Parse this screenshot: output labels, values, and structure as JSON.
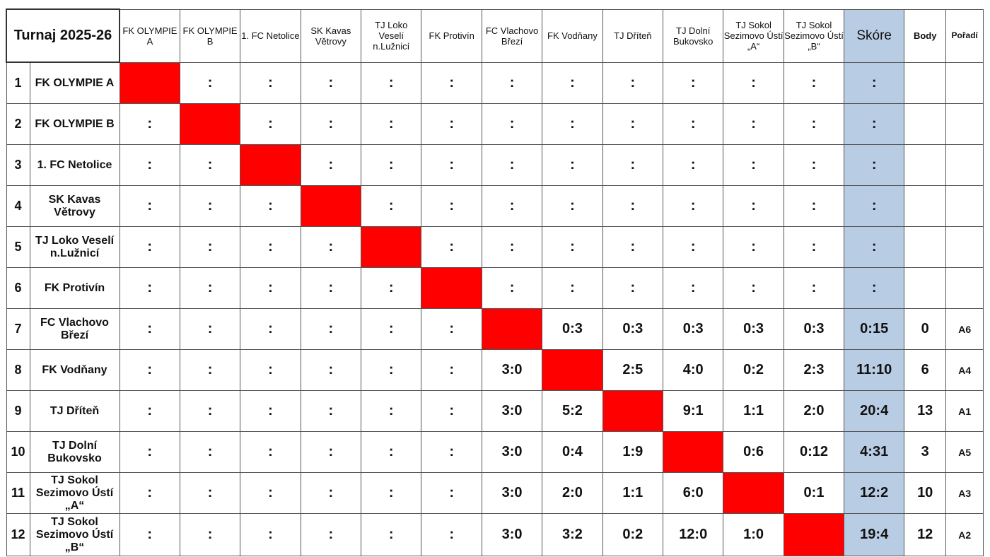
{
  "title": "Turnaj 2025-26",
  "columns": [
    "FK OLYMPIE A",
    "FK OLYMPIE B",
    "1. FC Netolice",
    "SK Kavas Větrovy",
    "TJ Loko Veselí n.Lužnicí",
    "FK Protivín",
    "FC Vlachovo Březí",
    "FK Vodňany",
    "TJ Dříteň",
    "TJ Dolní Bukovsko",
    "TJ Sokol Sezimovo Ústí „A“",
    "TJ Sokol Sezimovo Ústí „B“"
  ],
  "skore_label": "Skóre",
  "body_label": "Body",
  "poradi_label": "Pořadí",
  "colors": {
    "diagonal": "#ff0000",
    "skore_column": "#b8cce4"
  },
  "rows": [
    {
      "num": "1",
      "team": "FK OLYMPIE A",
      "results": [
        "",
        ":",
        ":",
        ":",
        ":",
        ":",
        ":",
        ":",
        ":",
        ":",
        ":",
        ":"
      ],
      "skore": ":",
      "body": "",
      "poradi": ""
    },
    {
      "num": "2",
      "team": "FK OLYMPIE B",
      "results": [
        ":",
        "",
        ":",
        ":",
        ":",
        ":",
        ":",
        ":",
        ":",
        ":",
        ":",
        ":"
      ],
      "skore": ":",
      "body": "",
      "poradi": ""
    },
    {
      "num": "3",
      "team": "1. FC Netolice",
      "results": [
        ":",
        ":",
        "",
        ":",
        ":",
        ":",
        ":",
        ":",
        ":",
        ":",
        ":",
        ":"
      ],
      "skore": ":",
      "body": "",
      "poradi": ""
    },
    {
      "num": "4",
      "team": "SK Kavas Větrovy",
      "results": [
        ":",
        ":",
        ":",
        "",
        ":",
        ":",
        ":",
        ":",
        ":",
        ":",
        ":",
        ":"
      ],
      "skore": ":",
      "body": "",
      "poradi": ""
    },
    {
      "num": "5",
      "team": "TJ Loko Veselí n.Lužnicí",
      "results": [
        ":",
        ":",
        ":",
        ":",
        "",
        ":",
        ":",
        ":",
        ":",
        ":",
        ":",
        ":"
      ],
      "skore": ":",
      "body": "",
      "poradi": ""
    },
    {
      "num": "6",
      "team": "FK Protivín",
      "results": [
        ":",
        ":",
        ":",
        ":",
        ":",
        "",
        ":",
        ":",
        ":",
        ":",
        ":",
        ":"
      ],
      "skore": ":",
      "body": "",
      "poradi": ""
    },
    {
      "num": "7",
      "team": "FC Vlachovo Březí",
      "results": [
        ":",
        ":",
        ":",
        ":",
        ":",
        ":",
        "",
        "0:3",
        "0:3",
        "0:3",
        "0:3",
        "0:3"
      ],
      "skore": "0:15",
      "body": "0",
      "poradi": "A6"
    },
    {
      "num": "8",
      "team": "FK Vodňany",
      "results": [
        ":",
        ":",
        ":",
        ":",
        ":",
        ":",
        "3:0",
        "",
        "2:5",
        "4:0",
        "0:2",
        "2:3"
      ],
      "skore": "11:10",
      "body": "6",
      "poradi": "A4"
    },
    {
      "num": "9",
      "team": "TJ Dříteň",
      "results": [
        ":",
        ":",
        ":",
        ":",
        ":",
        ":",
        "3:0",
        "5:2",
        "",
        "9:1",
        "1:1",
        "2:0"
      ],
      "skore": "20:4",
      "body": "13",
      "poradi": "A1"
    },
    {
      "num": "10",
      "team": "TJ Dolní Bukovsko",
      "results": [
        ":",
        ":",
        ":",
        ":",
        ":",
        ":",
        "3:0",
        "0:4",
        "1:9",
        "",
        "0:6",
        "0:12"
      ],
      "skore": "4:31",
      "body": "3",
      "poradi": "A5"
    },
    {
      "num": "11",
      "team": "TJ Sokol Sezimovo Ústí „A“",
      "results": [
        ":",
        ":",
        ":",
        ":",
        ":",
        ":",
        "3:0",
        "2:0",
        "1:1",
        "6:0",
        "",
        "0:1"
      ],
      "skore": "12:2",
      "body": "10",
      "poradi": "A3"
    },
    {
      "num": "12",
      "team": "TJ Sokol Sezimovo Ústí „B“",
      "results": [
        ":",
        ":",
        ":",
        ":",
        ":",
        ":",
        "3:0",
        "3:2",
        "0:2",
        "12:0",
        "1:0",
        ""
      ],
      "skore": "19:4",
      "body": "12",
      "poradi": "A2"
    }
  ]
}
